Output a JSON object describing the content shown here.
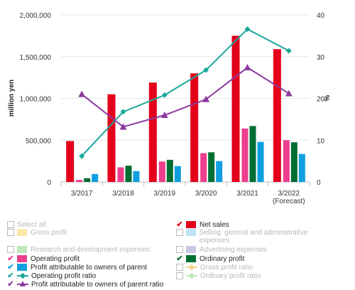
{
  "chart_data": {
    "type": "bar",
    "categories": [
      "3/2017",
      "3/2018",
      "3/2019",
      "3/2020",
      "3/2021",
      "3/2022\n(Forecast)"
    ],
    "ylabel_left": "million yen",
    "ylabel_right": "%",
    "ylim_left": [
      0,
      2000000
    ],
    "ylim_right": [
      0,
      40
    ],
    "left_ticks": [
      "0",
      "500,000",
      "1,000,000",
      "1,500,000",
      "2,000,000"
    ],
    "right_ticks": [
      "0",
      "10",
      "20",
      "30",
      "40"
    ],
    "bar_series": [
      {
        "name": "Net sales",
        "color": "#e4001b",
        "values": [
          490000,
          1050000,
          1190000,
          1300000,
          1750000,
          1590000
        ]
      },
      {
        "name": "Operating profit",
        "color": "#ee3e8e",
        "values": [
          25000,
          175000,
          245000,
          345000,
          640000,
          500000
        ]
      },
      {
        "name": "Ordinary profit",
        "color": "#006d33",
        "values": [
          45000,
          195000,
          265000,
          355000,
          670000,
          475000
        ]
      },
      {
        "name": "Profit attributable to owners of parent",
        "color": "#0f9fe0",
        "values": [
          95000,
          130000,
          190000,
          250000,
          480000,
          335000
        ]
      }
    ],
    "line_series": [
      {
        "name": "Operating profit ratio",
        "color": "#1aa89a",
        "marker": "diamond",
        "values": [
          6.2,
          16.8,
          20.8,
          26.8,
          36.6,
          31.4
        ]
      },
      {
        "name": "Profit attributable to owners of parent ratio",
        "color": "#8d3b9f",
        "marker": "triangle",
        "values": [
          21.0,
          13.2,
          16.0,
          19.8,
          27.4,
          21.2
        ]
      }
    ]
  },
  "legend": {
    "items": [
      {
        "label": "Select all",
        "checked": false,
        "type": "none",
        "color": ""
      },
      {
        "label": "Net sales",
        "checked": true,
        "type": "bar",
        "color": "#e4001b"
      },
      {
        "label": "Gross profit",
        "checked": false,
        "type": "bar",
        "color": "#fde7a8"
      },
      {
        "label": "Selling, general and administrative expenses",
        "checked": false,
        "type": "bar",
        "color": "#bfe3f5"
      },
      {
        "label": "Research and development expenses",
        "checked": false,
        "type": "bar",
        "color": "#bfe6b8"
      },
      {
        "label": "Advertising expenses",
        "checked": false,
        "type": "bar",
        "color": "#c7c9e6"
      },
      {
        "label": "Operating profit",
        "checked": true,
        "type": "bar",
        "color": "#ee3e8e"
      },
      {
        "label": "Ordinary profit",
        "checked": true,
        "type": "bar",
        "color": "#006d33"
      },
      {
        "label": "Profit attributable to owners of parent",
        "checked": true,
        "type": "bar",
        "color": "#0f9fe0"
      },
      {
        "label": "Gross profit ratio",
        "checked": false,
        "type": "line-diamond",
        "color": "#f5d48a"
      },
      {
        "label": "Operating profit ratio",
        "checked": true,
        "type": "line-diamond",
        "color": "#1aa89a"
      },
      {
        "label": "Ordinary profit ratio",
        "checked": false,
        "type": "line-diamond",
        "color": "#bfe6b8"
      },
      {
        "label": "Profit attributable to owners of parent ratio",
        "checked": true,
        "type": "line-triangle",
        "color": "#8d3b9f"
      }
    ]
  }
}
